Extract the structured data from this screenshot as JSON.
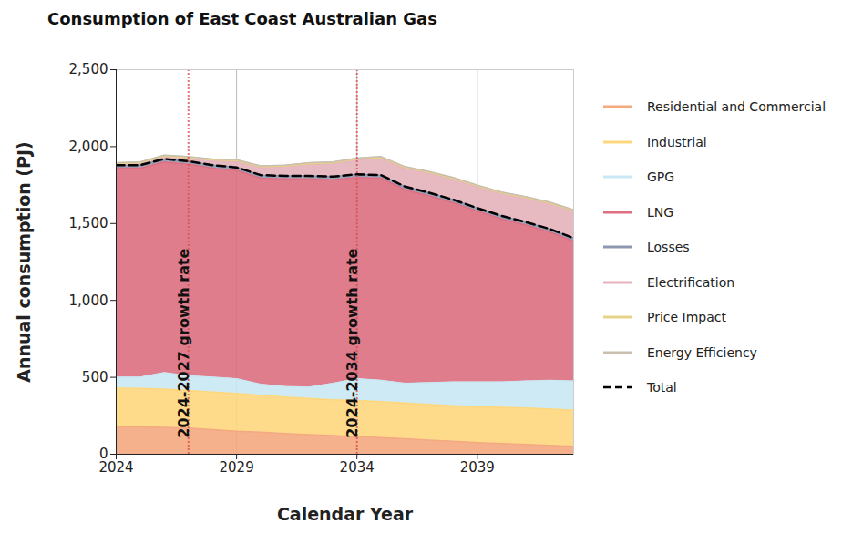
{
  "chart_data": {
    "type": "area",
    "title": "Consumption of East Coast Australian Gas",
    "x_label": "Calendar Year",
    "y_label": "Annual consumption (PJ)",
    "stacked": true,
    "grid": "x",
    "legend": "right",
    "x": [
      2024,
      2025,
      2026,
      2027,
      2028,
      2029,
      2030,
      2031,
      2032,
      2033,
      2034,
      2035,
      2036,
      2037,
      2038,
      2039,
      2040,
      2041,
      2042,
      2043
    ],
    "xlim": [
      2024,
      2043
    ],
    "xticks": [
      2024,
      2029,
      2034,
      2039
    ],
    "ylim": [
      0,
      2500
    ],
    "yticks": [
      0,
      500,
      {
        "value": 1000,
        "label": "1,000"
      },
      {
        "value": 1500,
        "label": "1,500"
      },
      {
        "value": 2000,
        "label": "2,000"
      },
      {
        "value": 2500,
        "label": "2,500"
      }
    ],
    "annotations": [
      {
        "x": 2027,
        "text": "2024-2027 growth rate"
      },
      {
        "x": 2034,
        "text": "2024-2034 growth rate"
      }
    ],
    "series": [
      {
        "name": "Residential and Commercial",
        "color": "#f4a97f",
        "values": [
          180,
          178,
          175,
          170,
          160,
          150,
          143,
          135,
          128,
          122,
          115,
          108,
          100,
          92,
          84,
          76,
          70,
          64,
          58,
          52
        ]
      },
      {
        "name": "Industrial",
        "color": "#fdd77e",
        "values": [
          250,
          250,
          248,
          245,
          245,
          245,
          240,
          237,
          235,
          232,
          235,
          234,
          233,
          233,
          232,
          234,
          235,
          236,
          236,
          233
        ]
      },
      {
        "name": "GPG",
        "color": "#c9e8f4",
        "values": [
          70,
          72,
          107,
          95,
          95,
          95,
          72,
          68,
          72,
          106,
          140,
          138,
          127,
          140,
          154,
          160,
          165,
          175,
          186,
          190
        ]
      },
      {
        "name": "LNG",
        "color": "#dc6f80",
        "values": [
          1360,
          1360,
          1370,
          1375,
          1360,
          1355,
          1340,
          1350,
          1355,
          1325,
          1310,
          1315,
          1260,
          1215,
          1165,
          1110,
          1060,
          1015,
          965,
          910
        ]
      },
      {
        "name": "Losses",
        "color": "#8e97b0",
        "values": [
          20,
          20,
          20,
          20,
          20,
          20,
          20,
          20,
          20,
          20,
          20,
          20,
          20,
          20,
          20,
          20,
          20,
          20,
          20,
          20
        ]
      },
      {
        "name": "Electrification",
        "color": "#e4b3bb",
        "values": [
          5,
          10,
          15,
          20,
          30,
          40,
          50,
          60,
          75,
          85,
          95,
          110,
          120,
          128,
          135,
          140,
          145,
          155,
          165,
          175
        ]
      },
      {
        "name": "Price Impact",
        "color": "#e8d28a",
        "values": [
          4,
          4,
          4,
          4,
          4,
          4,
          4,
          4,
          4,
          4,
          4,
          4,
          4,
          4,
          4,
          4,
          4,
          4,
          4,
          4
        ]
      },
      {
        "name": "Energy Efficiency",
        "color": "#c8bfae",
        "values": [
          6,
          6,
          6,
          6,
          6,
          6,
          6,
          6,
          6,
          6,
          6,
          6,
          6,
          6,
          6,
          6,
          6,
          6,
          6,
          6
        ]
      },
      {
        "name": "Total",
        "type": "line",
        "line_style": "dashed",
        "color": "#000000",
        "values": [
          1880,
          1880,
          1920,
          1905,
          1880,
          1865,
          1815,
          1810,
          1810,
          1805,
          1820,
          1815,
          1740,
          1700,
          1655,
          1600,
          1550,
          1510,
          1465,
          1405
        ]
      }
    ]
  }
}
